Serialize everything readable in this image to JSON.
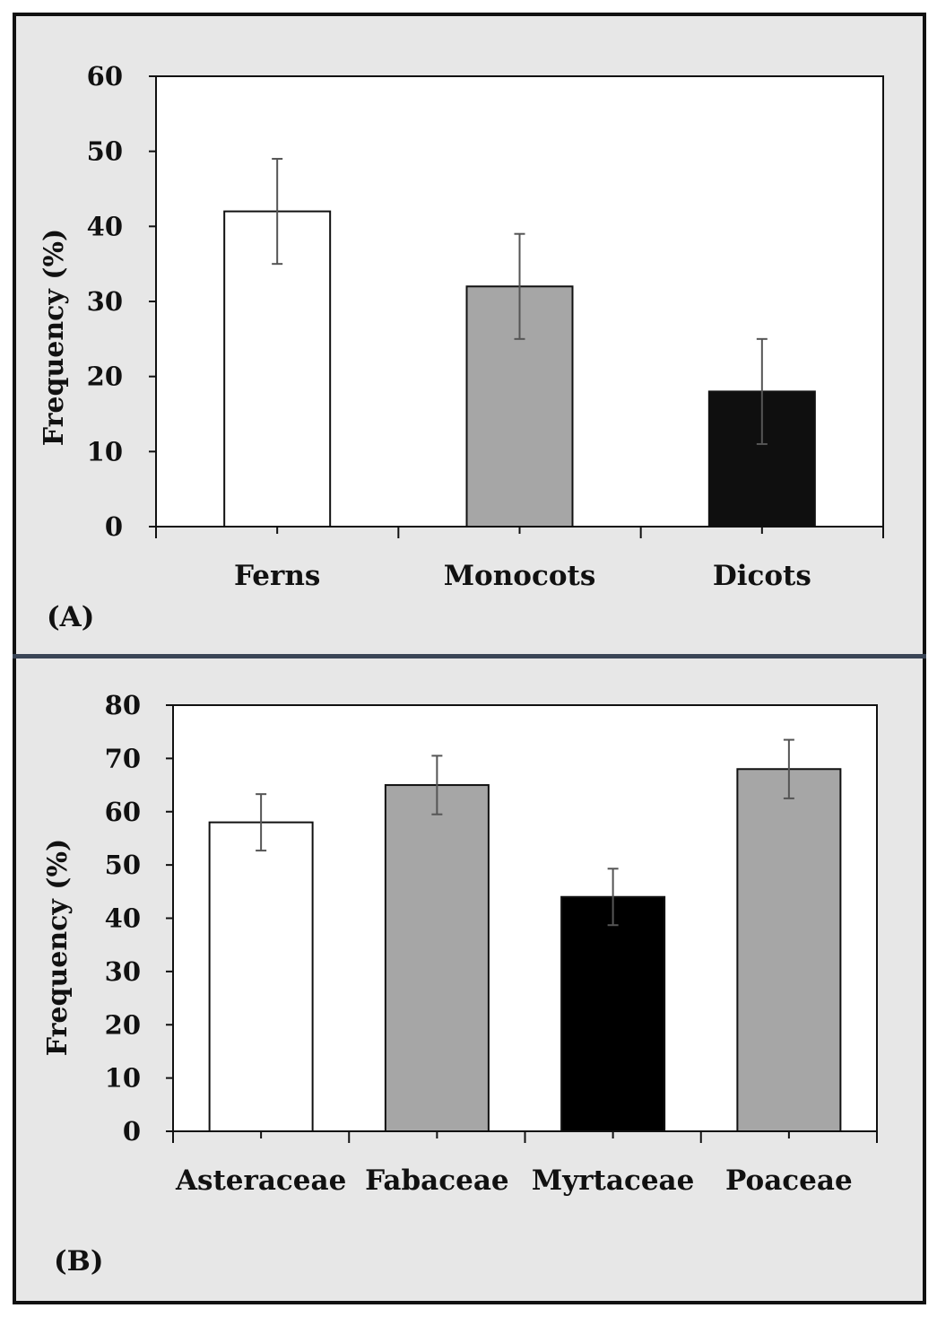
{
  "chart_data": [
    {
      "type": "bar",
      "panel_label": "(A)",
      "categories": [
        "Ferns",
        "Monocots",
        "Dicots"
      ],
      "values": [
        42,
        32,
        18
      ],
      "errors": [
        7,
        7,
        7
      ],
      "bar_colors": [
        "#ffffff",
        "#a6a6a6",
        "#0f0f0f"
      ],
      "ylabel": "Frequency (%)",
      "ylim": [
        0,
        60
      ],
      "yticks": [
        0,
        10,
        20,
        30,
        40,
        50,
        60
      ],
      "ytick_labels": [
        "0",
        "10",
        "20",
        "30",
        "40",
        "50",
        "60"
      ]
    },
    {
      "type": "bar",
      "panel_label": "(B)",
      "categories": [
        "Asteraceae",
        "Fabaceae",
        "Myrtaceae",
        "Poaceae"
      ],
      "values": [
        58,
        65,
        44,
        68
      ],
      "errors": [
        5.3,
        5.5,
        5.3,
        5.5
      ],
      "bar_colors": [
        "#ffffff",
        "#a6a6a6",
        "#000000",
        "#a6a6a6"
      ],
      "ylabel": "Frequency (%)",
      "ylim": [
        0,
        80
      ],
      "yticks": [
        0,
        10,
        20,
        30,
        40,
        50,
        60,
        70,
        80
      ],
      "ytick_labels": [
        "0",
        "10",
        "20",
        "30",
        "40",
        "50",
        "60",
        "70",
        "80"
      ]
    }
  ]
}
